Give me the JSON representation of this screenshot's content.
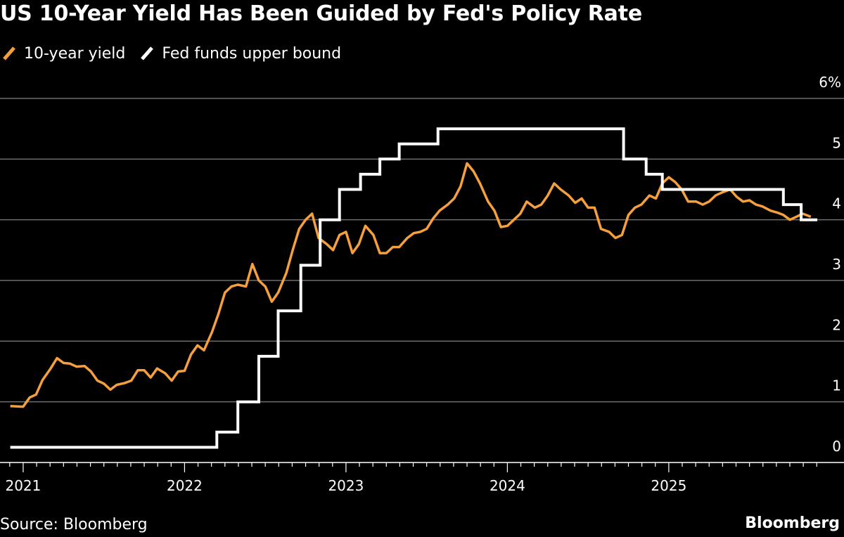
{
  "colors": {
    "background": "#000000",
    "text": "#ffffff",
    "grid": "#6e6e6e",
    "yield": "#f5a03c",
    "fed": "#ffffff"
  },
  "footer": {
    "source": "Source: Bloomberg",
    "brand": "Bloomberg"
  },
  "chart_data": {
    "type": "line",
    "title": "US 10-Year Yield Has Been Guided by Fed's Policy Rate",
    "xlabel": "",
    "ylabel": "",
    "x_unit": "decimal year",
    "xlim": [
      2020.9,
      2025.92
    ],
    "ylim": [
      0,
      6
    ],
    "y_ticks": [
      {
        "value": 6,
        "label": "6%"
      },
      {
        "value": 5,
        "label": "5"
      },
      {
        "value": 4,
        "label": "4"
      },
      {
        "value": 3,
        "label": "3"
      },
      {
        "value": 2,
        "label": "2"
      },
      {
        "value": 1,
        "label": "1"
      },
      {
        "value": 0,
        "label": "0"
      }
    ],
    "x_ticks": [
      {
        "value": 2021,
        "label": "2021"
      },
      {
        "value": 2022,
        "label": "2022"
      },
      {
        "value": 2023,
        "label": "2023"
      },
      {
        "value": 2024,
        "label": "2024"
      },
      {
        "value": 2025,
        "label": "2025"
      }
    ],
    "grid": true,
    "legend_position": "top-left",
    "series": [
      {
        "name": "10-year yield",
        "color": "#f5a03c",
        "style": "line",
        "x": [
          2020.92,
          2021.0,
          2021.04,
          2021.08,
          2021.12,
          2021.17,
          2021.21,
          2021.25,
          2021.29,
          2021.33,
          2021.38,
          2021.42,
          2021.46,
          2021.5,
          2021.54,
          2021.58,
          2021.63,
          2021.67,
          2021.71,
          2021.75,
          2021.79,
          2021.83,
          2021.88,
          2021.92,
          2021.96,
          2022.0,
          2022.04,
          2022.08,
          2022.12,
          2022.17,
          2022.21,
          2022.25,
          2022.29,
          2022.33,
          2022.38,
          2022.42,
          2022.46,
          2022.5,
          2022.54,
          2022.58,
          2022.63,
          2022.67,
          2022.71,
          2022.75,
          2022.79,
          2022.83,
          2022.88,
          2022.92,
          2022.96,
          2023.0,
          2023.04,
          2023.08,
          2023.12,
          2023.17,
          2023.21,
          2023.25,
          2023.29,
          2023.33,
          2023.38,
          2023.42,
          2023.46,
          2023.5,
          2023.54,
          2023.58,
          2023.63,
          2023.67,
          2023.71,
          2023.75,
          2023.79,
          2023.83,
          2023.88,
          2023.92,
          2023.96,
          2024.0,
          2024.04,
          2024.08,
          2024.12,
          2024.17,
          2024.21,
          2024.25,
          2024.29,
          2024.33,
          2024.38,
          2024.42,
          2024.46,
          2024.5,
          2024.54,
          2024.58,
          2024.63,
          2024.67,
          2024.71,
          2024.75,
          2024.79,
          2024.83,
          2024.88,
          2024.92,
          2024.96,
          2025.0,
          2025.04,
          2025.08,
          2025.12,
          2025.17,
          2025.21,
          2025.25,
          2025.29,
          2025.33,
          2025.38,
          2025.42,
          2025.46,
          2025.5,
          2025.54,
          2025.58,
          2025.63,
          2025.67,
          2025.71,
          2025.75,
          2025.79,
          2025.83,
          2025.88
        ],
        "values": [
          0.93,
          0.92,
          1.07,
          1.12,
          1.36,
          1.55,
          1.72,
          1.64,
          1.63,
          1.58,
          1.59,
          1.5,
          1.35,
          1.3,
          1.2,
          1.28,
          1.31,
          1.35,
          1.52,
          1.52,
          1.4,
          1.55,
          1.47,
          1.35,
          1.5,
          1.51,
          1.78,
          1.93,
          1.85,
          2.15,
          2.45,
          2.8,
          2.9,
          2.93,
          2.9,
          3.27,
          3.0,
          2.9,
          2.65,
          2.8,
          3.12,
          3.5,
          3.85,
          4.0,
          4.1,
          3.7,
          3.6,
          3.5,
          3.75,
          3.8,
          3.45,
          3.6,
          3.9,
          3.75,
          3.45,
          3.45,
          3.55,
          3.55,
          3.7,
          3.78,
          3.8,
          3.85,
          4.02,
          4.15,
          4.25,
          4.35,
          4.55,
          4.93,
          4.8,
          4.6,
          4.3,
          4.15,
          3.88,
          3.9,
          4.0,
          4.1,
          4.3,
          4.2,
          4.25,
          4.4,
          4.6,
          4.5,
          4.4,
          4.28,
          4.35,
          4.2,
          4.2,
          3.85,
          3.8,
          3.7,
          3.75,
          4.08,
          4.2,
          4.25,
          4.4,
          4.35,
          4.6,
          4.7,
          4.62,
          4.5,
          4.3,
          4.3,
          4.25,
          4.3,
          4.4,
          4.45,
          4.5,
          4.38,
          4.3,
          4.32,
          4.25,
          4.22,
          4.15,
          4.12,
          4.08,
          4.0,
          4.05,
          4.1,
          4.05
        ]
      },
      {
        "name": "Fed funds upper bound",
        "color": "#ffffff",
        "style": "step",
        "x": [
          2020.92,
          2022.2,
          2022.33,
          2022.46,
          2022.58,
          2022.72,
          2022.84,
          2022.96,
          2023.09,
          2023.21,
          2023.33,
          2023.57,
          2024.72,
          2024.86,
          2024.96,
          2025.71,
          2025.82,
          2025.92
        ],
        "values": [
          0.25,
          0.5,
          1.0,
          1.75,
          2.5,
          3.25,
          4.0,
          4.5,
          4.75,
          5.0,
          5.25,
          5.5,
          5.0,
          4.75,
          4.5,
          4.25,
          4.0,
          4.0
        ]
      }
    ]
  }
}
